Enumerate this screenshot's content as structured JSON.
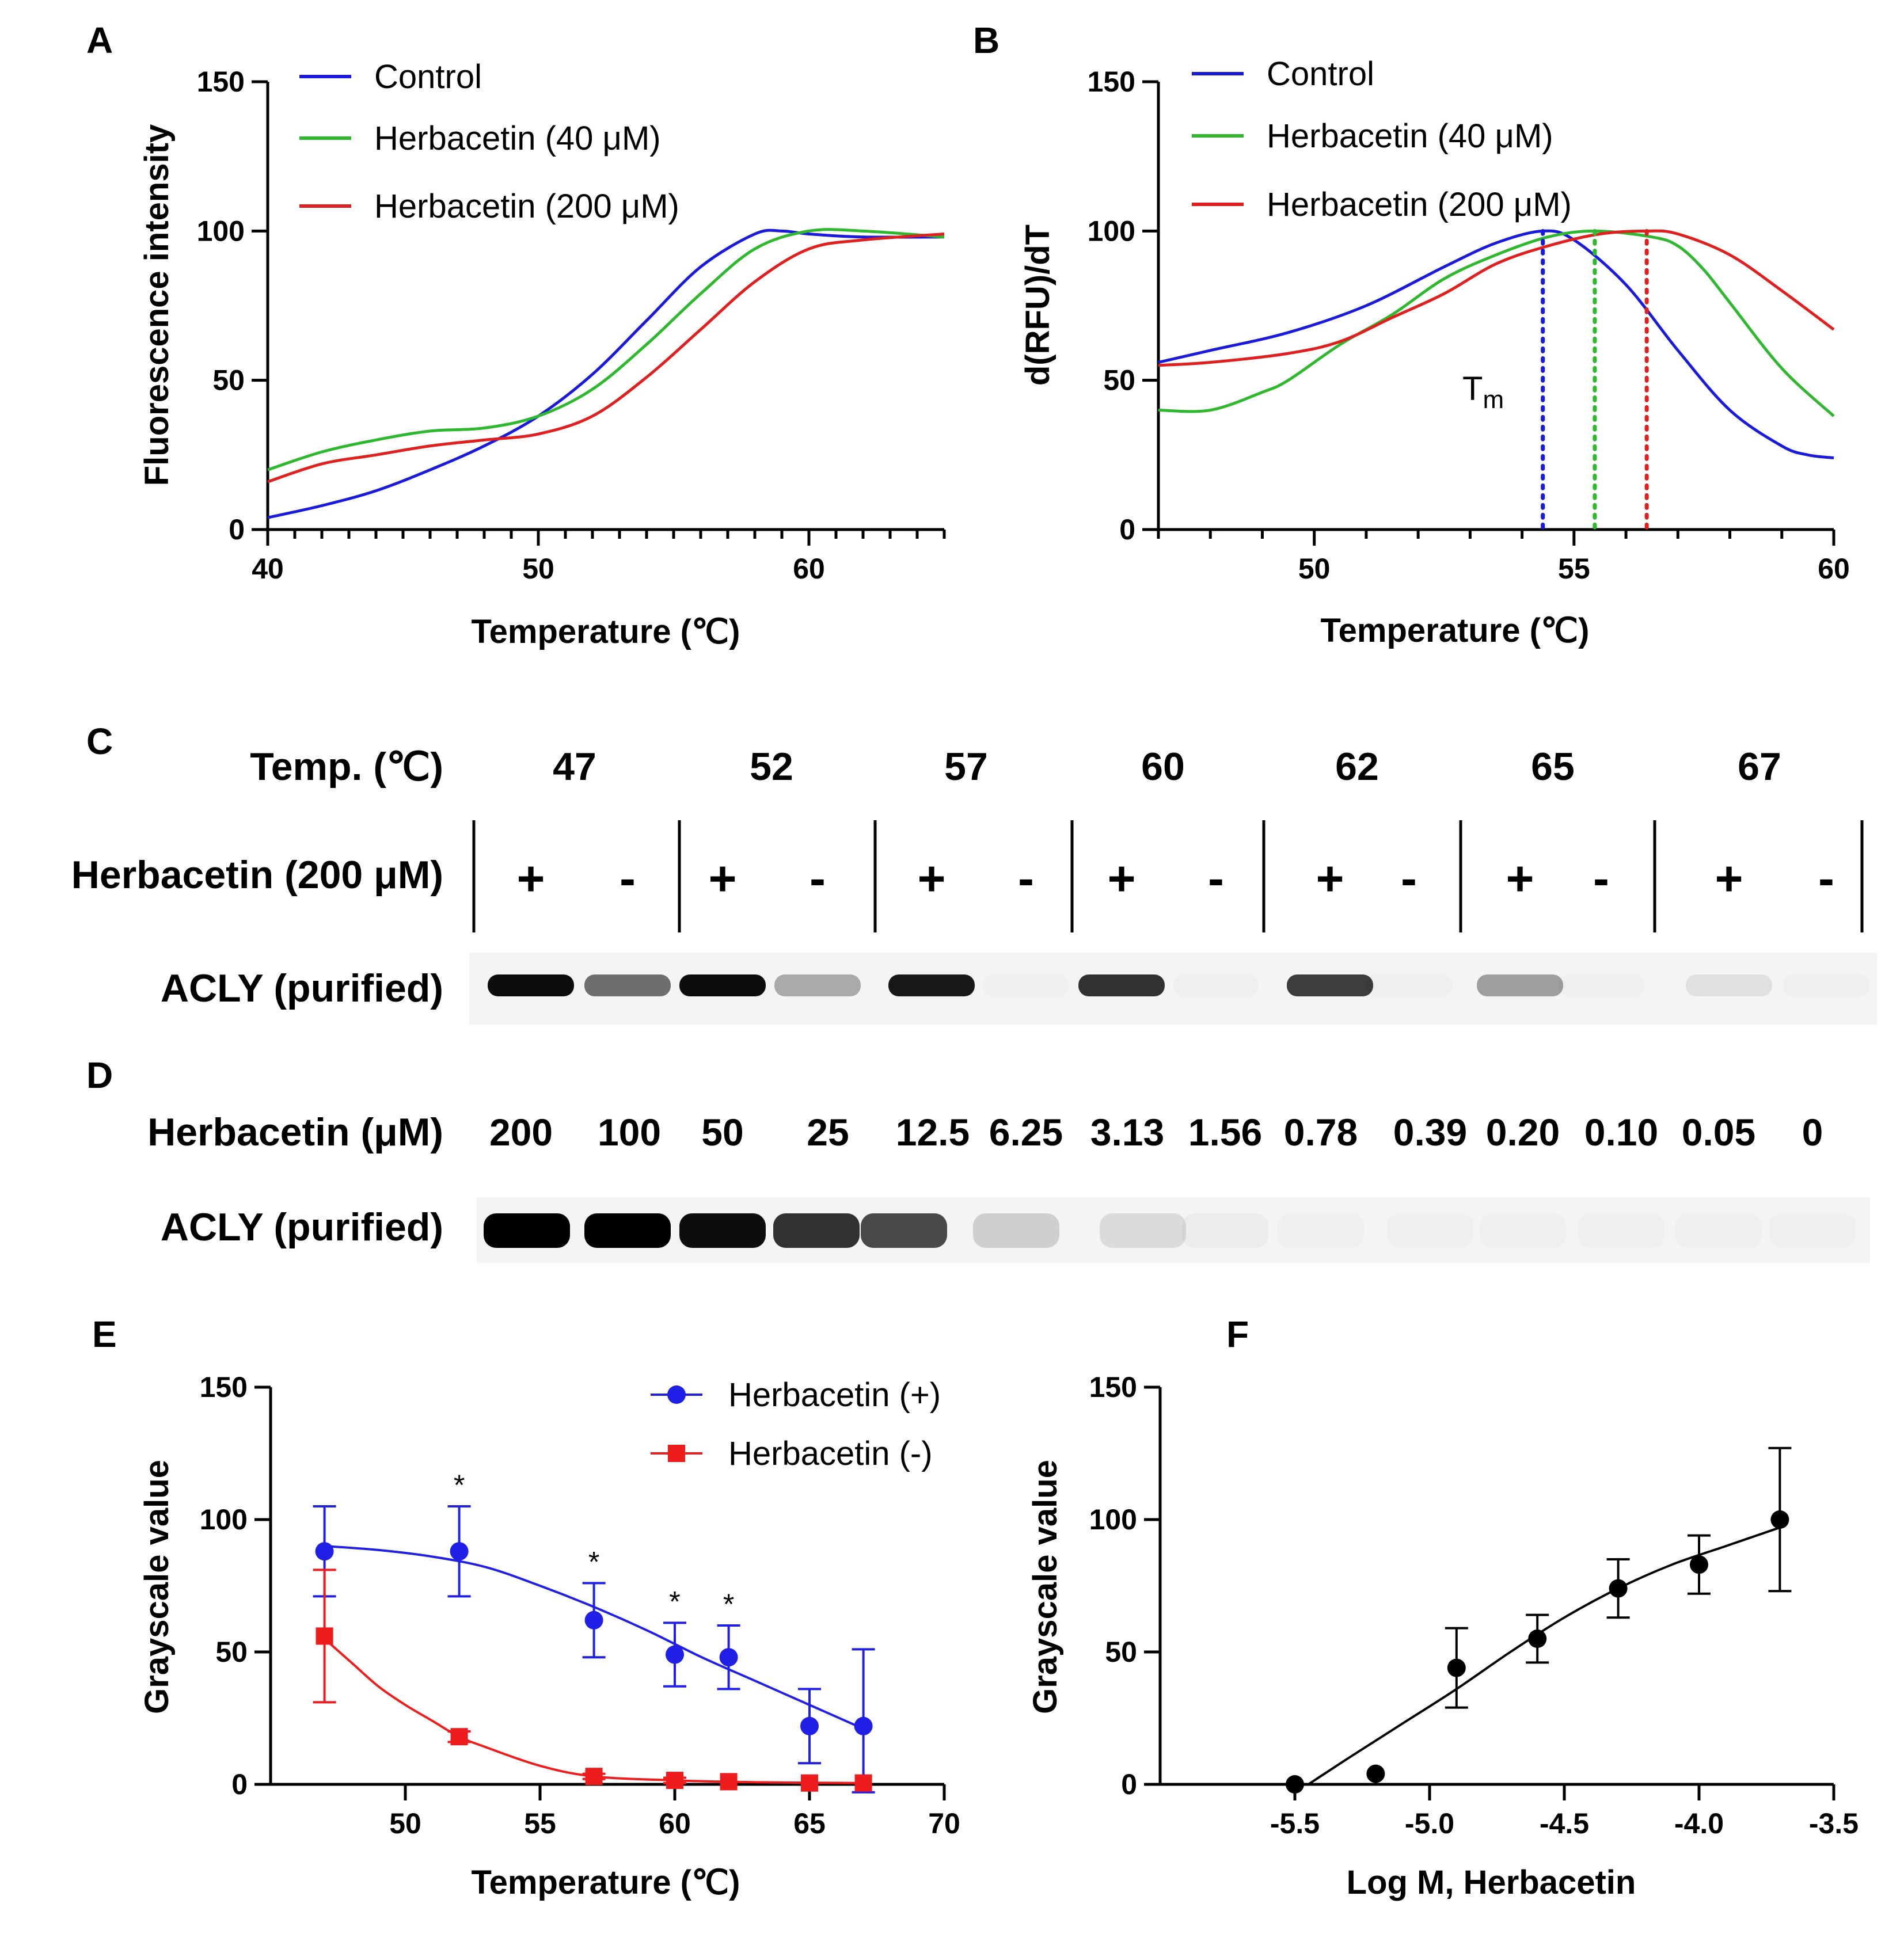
{
  "figure": {
    "panel_letters": [
      "A",
      "B",
      "C",
      "D",
      "E",
      "F"
    ]
  },
  "colors": {
    "control": "#1a1adc",
    "herb40": "#2db82d",
    "herb200": "#e01f1f",
    "blue_marker": "#1f1fe6",
    "red_marker": "#ee1c1c",
    "black": "#000000"
  },
  "chart_data": [
    {
      "id": "A",
      "type": "line",
      "xlabel": "Temperature (℃)",
      "ylabel": "Fluorescence intensity",
      "xlim": [
        40,
        65
      ],
      "ylim": [
        0,
        150
      ],
      "xticks": [
        "40",
        "50",
        "60"
      ],
      "yticks": [
        "0",
        "50",
        "100",
        "150"
      ],
      "legend": [
        "Control",
        "Herbacetin (40 μM)",
        "Herbacetin (200 μM)"
      ],
      "series": [
        {
          "name": "Control",
          "x": [
            40,
            42,
            44,
            46,
            48,
            50,
            52,
            54,
            56,
            58,
            59,
            60,
            62,
            65
          ],
          "y": [
            4,
            8,
            13,
            20,
            28,
            38,
            52,
            70,
            88,
            99,
            100,
            99,
            98,
            98
          ]
        },
        {
          "name": "Herbacetin (40 μM)",
          "x": [
            40,
            42,
            44,
            46,
            48,
            50,
            52,
            54,
            56,
            58,
            60,
            62,
            65
          ],
          "y": [
            20,
            26,
            30,
            33,
            34,
            38,
            47,
            62,
            79,
            94,
            100,
            100,
            98
          ]
        },
        {
          "name": "Herbacetin (200 μM)",
          "x": [
            40,
            42,
            44,
            46,
            48,
            50,
            52,
            54,
            56,
            58,
            60,
            62,
            65
          ],
          "y": [
            16,
            22,
            25,
            28,
            30,
            32,
            38,
            51,
            67,
            83,
            94,
            97,
            99
          ]
        }
      ]
    },
    {
      "id": "B",
      "type": "line",
      "xlabel": "Temperature (℃)",
      "ylabel": "d(RFU)/dT",
      "xlim": [
        47,
        60
      ],
      "ylim": [
        0,
        150
      ],
      "xticks": [
        "50",
        "55",
        "60"
      ],
      "yticks": [
        "0",
        "50",
        "100",
        "150"
      ],
      "legend": [
        "Control",
        "Herbacetin (40 μM)",
        "Herbacetin (200 μM)"
      ],
      "annotation": "T",
      "annotation_sub": "m",
      "tm": [
        54.4,
        55.4,
        56.4
      ],
      "series": [
        {
          "name": "Control",
          "x": [
            47,
            48,
            49.5,
            51,
            52.5,
            53.5,
            54.4,
            55,
            56,
            57,
            58,
            59,
            59.5,
            60
          ],
          "y": [
            56,
            60,
            66,
            75,
            88,
            96,
            100,
            97,
            82,
            60,
            40,
            28,
            25,
            24
          ]
        },
        {
          "name": "Herbacetin (40 μM)",
          "x": [
            47,
            48,
            49,
            49.5,
            50.5,
            51.5,
            52.5,
            53.5,
            54.5,
            55.4,
            56.5,
            57,
            57.5,
            58,
            59,
            60
          ],
          "y": [
            40,
            40,
            46,
            50,
            62,
            72,
            84,
            92,
            98,
            100,
            98,
            95,
            87,
            76,
            54,
            38
          ]
        },
        {
          "name": "Herbacetin (200 μM)",
          "x": [
            47,
            48,
            49.5,
            50.5,
            51.5,
            52.5,
            53.5,
            54.5,
            55.5,
            56.4,
            57,
            58,
            59,
            60
          ],
          "y": [
            55,
            56,
            59,
            63,
            71,
            79,
            89,
            95,
            99,
            100,
            99,
            92,
            80,
            67
          ]
        }
      ]
    },
    {
      "id": "E",
      "type": "scatter",
      "xlabel": "Temperature (℃)",
      "ylabel": "Grayscale value",
      "xlim": [
        45,
        70
      ],
      "ylim": [
        0,
        150
      ],
      "xticks": [
        "50",
        "55",
        "60",
        "65",
        "70"
      ],
      "yticks": [
        "0",
        "50",
        "100",
        "150"
      ],
      "legend": [
        "Herbacetin (+)",
        "Herbacetin (-)"
      ],
      "significance": "*",
      "series": [
        {
          "name": "Herbacetin (+)",
          "x": [
            47,
            52,
            57,
            60,
            62,
            65,
            67
          ],
          "y": [
            88,
            88,
            62,
            49,
            48,
            22,
            22
          ],
          "err": [
            17,
            17,
            14,
            12,
            12,
            14,
            29
          ],
          "sig": [
            false,
            true,
            true,
            true,
            true,
            false,
            false
          ],
          "fit_x": [
            47,
            49,
            51,
            53,
            55,
            57,
            59,
            61,
            63,
            65,
            67
          ],
          "fit_y": [
            90,
            88.5,
            86,
            82,
            75,
            67,
            58,
            48,
            39,
            30,
            21
          ]
        },
        {
          "name": "Herbacetin (-)",
          "x": [
            47,
            52,
            57,
            60,
            62,
            65,
            67
          ],
          "y": [
            56,
            18,
            3,
            1.5,
            1,
            0.5,
            0.5
          ],
          "err": [
            25,
            2,
            1,
            1,
            0.5,
            0.3,
            0.3
          ],
          "fit_x": [
            47,
            48,
            49,
            50,
            51,
            52,
            53,
            55,
            57,
            60,
            63,
            67
          ],
          "fit_y": [
            55,
            46,
            37,
            30,
            24,
            18,
            14,
            7,
            3,
            1.5,
            0.8,
            0.5
          ]
        }
      ]
    },
    {
      "id": "F",
      "type": "scatter",
      "xlabel": "Log M, Herbacetin",
      "ylabel": "Grayscale value",
      "xlim": [
        -6.0,
        -3.5
      ],
      "ylim": [
        0,
        150
      ],
      "xticks": [
        "-5.5",
        "-5.0",
        "-4.5",
        "-4.0",
        "-3.5"
      ],
      "yticks": [
        "0",
        "50",
        "100",
        "150"
      ],
      "series": [
        {
          "name": "Herbacetin",
          "x": [
            -5.5,
            -5.2,
            -4.9,
            -4.6,
            -4.3,
            -4.0,
            -3.7
          ],
          "y": [
            0,
            4,
            44,
            55,
            74,
            83,
            100
          ],
          "err": [
            0,
            0,
            15,
            9,
            11,
            11,
            27
          ],
          "fit_x": [
            -5.45,
            -5.3,
            -5.1,
            -4.9,
            -4.7,
            -4.5,
            -4.3,
            -4.1,
            -3.9,
            -3.7
          ],
          "fit_y": [
            0,
            10,
            23,
            36,
            50,
            63,
            74,
            83,
            90,
            97
          ]
        }
      ]
    }
  ],
  "panelC": {
    "temp_label": "Temp. (℃)",
    "temps": [
      "47",
      "52",
      "57",
      "60",
      "62",
      "65",
      "67"
    ],
    "herb_label": "Herbacetin (200 μM)",
    "signs": [
      "+",
      "-",
      "+",
      "-",
      "+",
      "-",
      "+",
      "-",
      "+",
      "-",
      "+",
      "-",
      "+",
      "-"
    ],
    "blot_label": "ACLY (purified)",
    "band_intensity": [
      0.95,
      0.55,
      0.95,
      0.3,
      0.9,
      0.02,
      0.8,
      0.02,
      0.75,
      0.02,
      0.35,
      0.02,
      0.08,
      0.02
    ]
  },
  "panelD": {
    "herb_label": "Herbacetin (μM)",
    "concs": [
      "200",
      "100",
      "50",
      "25",
      "12.5",
      "6.25",
      "3.13",
      "1.56",
      "0.78",
      "0.39",
      "0.20",
      "0.10",
      "0.05",
      "0"
    ],
    "blot_label": "ACLY (purified)",
    "band_intensity": [
      1.0,
      1.0,
      0.95,
      0.8,
      0.7,
      0.15,
      0.1,
      0.03,
      0.02,
      0.02,
      0.02,
      0.02,
      0.02,
      0.02
    ]
  }
}
